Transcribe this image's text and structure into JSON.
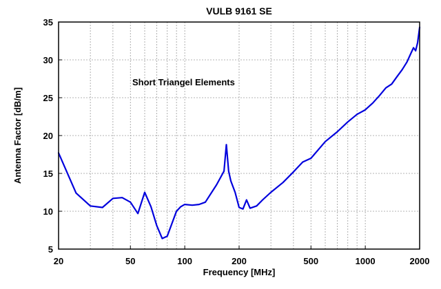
{
  "chart_data": {
    "type": "line",
    "title": "VULB 9161 SE",
    "xlabel": "Frequency [MHz]",
    "ylabel": "Antenna Factor [dB/m]",
    "xscale": "log",
    "xlim": [
      20,
      2000
    ],
    "ylim": [
      5,
      35
    ],
    "grid": true,
    "x_ticks": [
      20,
      50,
      100,
      200,
      500,
      1000,
      2000
    ],
    "x_tick_labels": [
      "20",
      "50",
      "100",
      "200",
      "500",
      "1000",
      "2000"
    ],
    "y_ticks": [
      5,
      10,
      15,
      20,
      25,
      30,
      35
    ],
    "y_tick_labels": [
      "5",
      "10",
      "15",
      "20",
      "25",
      "30",
      "35"
    ],
    "annotation": "Short Triangel Elements",
    "series": [
      {
        "name": "Antenna Factor",
        "color": "#0000dd",
        "x": [
          20,
          25,
          30,
          35,
          40,
          45,
          50,
          55,
          60,
          65,
          70,
          75,
          80,
          90,
          95,
          100,
          110,
          120,
          130,
          150,
          165,
          170,
          175,
          180,
          190,
          200,
          210,
          220,
          230,
          250,
          270,
          300,
          350,
          400,
          450,
          500,
          600,
          700,
          800,
          900,
          1000,
          1100,
          1200,
          1300,
          1400,
          1500,
          1600,
          1700,
          1800,
          1850,
          1900,
          1950,
          2000
        ],
        "values": [
          17.7,
          12.4,
          10.7,
          10.5,
          11.7,
          11.8,
          11.2,
          9.7,
          12.5,
          10.6,
          8.1,
          6.4,
          6.7,
          10.0,
          10.6,
          10.9,
          10.8,
          10.9,
          11.2,
          13.5,
          15.3,
          18.8,
          15.3,
          14.0,
          12.5,
          10.5,
          10.3,
          11.5,
          10.4,
          10.7,
          11.5,
          12.5,
          13.8,
          15.2,
          16.5,
          17.0,
          19.2,
          20.5,
          21.8,
          22.8,
          23.4,
          24.3,
          25.3,
          26.3,
          26.8,
          27.8,
          28.7,
          29.7,
          31.0,
          31.6,
          31.2,
          32.3,
          34.3
        ]
      }
    ]
  }
}
